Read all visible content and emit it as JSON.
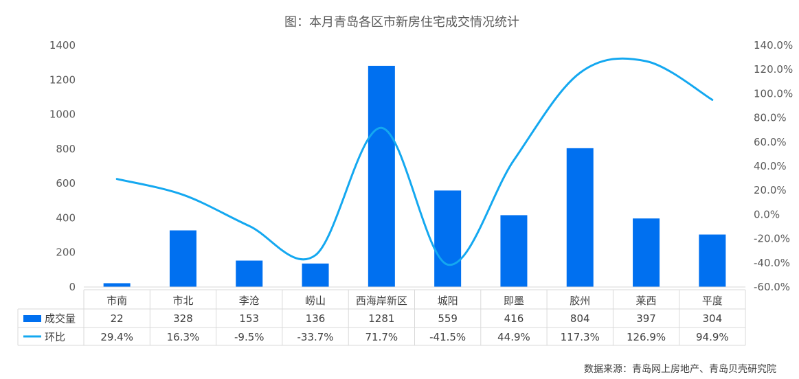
{
  "colors": {
    "bar": "#0070f0",
    "line": "#14a8f0",
    "axis_text": "#595959",
    "table_line": "#d9d9d9"
  },
  "chart_data": {
    "type": "bar",
    "title": "图：本月青岛各区市新房住宅成交情况统计",
    "categories": [
      "市南",
      "市北",
      "李沧",
      "崂山",
      "西海岸新区",
      "城阳",
      "即墨",
      "胶州",
      "莱西",
      "平度"
    ],
    "series": [
      {
        "name": "成交量",
        "type": "bar",
        "axis": "left",
        "values": [
          22,
          328,
          153,
          136,
          1281,
          559,
          416,
          804,
          397,
          304
        ],
        "labels": [
          "22",
          "328",
          "153",
          "136",
          "1281",
          "559",
          "416",
          "804",
          "397",
          "304"
        ]
      },
      {
        "name": "环比",
        "type": "line",
        "axis": "right",
        "values": [
          29.4,
          16.3,
          -9.5,
          -33.7,
          71.7,
          -41.5,
          44.9,
          117.3,
          126.9,
          94.9
        ],
        "labels": [
          "29.4%",
          "16.3%",
          "-9.5%",
          "-33.7%",
          "71.7%",
          "-41.5%",
          "44.9%",
          "117.3%",
          "126.9%",
          "94.9%"
        ]
      }
    ],
    "ylim_left": [
      0,
      1400
    ],
    "ylim_right": [
      -60,
      140
    ],
    "yticks_left": [
      "0",
      "200",
      "400",
      "600",
      "800",
      "1000",
      "1200",
      "1400"
    ],
    "yticks_right": [
      "-60.0%",
      "-40.0%",
      "-20.0%",
      "0.0%",
      "20.0%",
      "40.0%",
      "60.0%",
      "80.0%",
      "100.0%",
      "120.0%",
      "140.0%"
    ],
    "grid": false,
    "legend": "data-table",
    "source": "数据来源：青岛网上房地产、青岛贝壳研究院"
  }
}
